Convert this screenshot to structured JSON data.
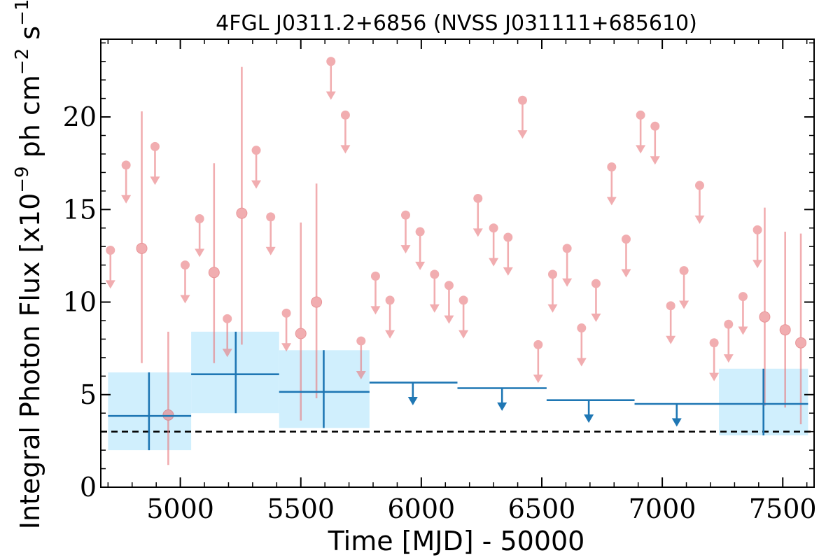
{
  "chart_data": {
    "type": "scatter",
    "title": "4FGL J0311.2+6856 (NVSS J031111+685610)",
    "xlabel": "Time [MJD] - 50000",
    "ylabel_prefix": "Integral Photon Flux [x10",
    "ylabel_exp1": "−9",
    "ylabel_mid": " ph cm",
    "ylabel_exp2": "−2",
    "ylabel_mid2": " s",
    "ylabel_exp3": "−1",
    "ylabel_suffix": "]",
    "xlim": [
      4670,
      7630
    ],
    "ylim": [
      0,
      24.2
    ],
    "x_ticks": [
      5000,
      5500,
      6000,
      6500,
      7000,
      7500
    ],
    "x_tick_labels": [
      "5000",
      "5500",
      "6000",
      "6500",
      "7000",
      "7500"
    ],
    "y_ticks": [
      0,
      5,
      10,
      15,
      20
    ],
    "y_tick_labels": [
      "0",
      "5",
      "10",
      "15",
      "20"
    ],
    "reference_line": 3.0,
    "colors": {
      "short": "#e8787c",
      "long": "#1f77b4",
      "band": "#cdeefd",
      "ref": "#000000"
    },
    "short_bin_points": [
      {
        "x": 4950,
        "y": 3.9,
        "err": [
          1.2,
          8.4
        ]
      },
      {
        "x": 5140,
        "y": 11.6,
        "err": [
          6.7,
          17.5
        ]
      },
      {
        "x": 4840,
        "y": 12.9,
        "err": [
          6.7,
          20.3
        ]
      },
      {
        "x": 5255,
        "y": 14.8,
        "err": [
          7.7,
          22.7
        ]
      },
      {
        "x": 5500,
        "y": 8.3,
        "err": [
          3.6,
          14.3
        ]
      },
      {
        "x": 5565,
        "y": 10.0,
        "err": [
          4.8,
          16.4
        ]
      },
      {
        "x": 7425,
        "y": 9.2,
        "err": [
          4.4,
          15.1
        ]
      },
      {
        "x": 7510,
        "y": 8.5,
        "err": [
          4.3,
          13.8
        ]
      },
      {
        "x": 7575,
        "y": 7.8,
        "err": [
          3.4,
          13.7
        ]
      }
    ],
    "short_bin_upper_limits": [
      {
        "x": 4710,
        "y": 12.8
      },
      {
        "x": 4775,
        "y": 17.4
      },
      {
        "x": 4895,
        "y": 18.4
      },
      {
        "x": 5020,
        "y": 12.0
      },
      {
        "x": 5080,
        "y": 14.5
      },
      {
        "x": 5195,
        "y": 9.1
      },
      {
        "x": 5315,
        "y": 18.2
      },
      {
        "x": 5375,
        "y": 14.6
      },
      {
        "x": 5440,
        "y": 9.4
      },
      {
        "x": 5625,
        "y": 23.0
      },
      {
        "x": 5685,
        "y": 20.1
      },
      {
        "x": 5750,
        "y": 7.9
      },
      {
        "x": 5810,
        "y": 11.4
      },
      {
        "x": 5870,
        "y": 10.1
      },
      {
        "x": 5935,
        "y": 14.7
      },
      {
        "x": 5995,
        "y": 13.8
      },
      {
        "x": 6055,
        "y": 11.5
      },
      {
        "x": 6115,
        "y": 10.9
      },
      {
        "x": 6175,
        "y": 10.1
      },
      {
        "x": 6235,
        "y": 15.6
      },
      {
        "x": 6300,
        "y": 14.0
      },
      {
        "x": 6360,
        "y": 13.5
      },
      {
        "x": 6420,
        "y": 20.9
      },
      {
        "x": 6485,
        "y": 7.7
      },
      {
        "x": 6545,
        "y": 11.5
      },
      {
        "x": 6605,
        "y": 12.9
      },
      {
        "x": 6665,
        "y": 8.6
      },
      {
        "x": 6725,
        "y": 11.0
      },
      {
        "x": 6790,
        "y": 17.3
      },
      {
        "x": 6850,
        "y": 13.4
      },
      {
        "x": 6910,
        "y": 20.1
      },
      {
        "x": 6970,
        "y": 19.5
      },
      {
        "x": 7035,
        "y": 9.8
      },
      {
        "x": 7090,
        "y": 11.7
      },
      {
        "x": 7155,
        "y": 16.3
      },
      {
        "x": 7215,
        "y": 7.8
      },
      {
        "x": 7275,
        "y": 8.8
      },
      {
        "x": 7335,
        "y": 10.3
      },
      {
        "x": 7395,
        "y": 13.9
      }
    ],
    "long_bin_points": [
      {
        "x": 4870,
        "x0": 4700,
        "x1": 5045,
        "y": 3.85,
        "y_lo": 2.0,
        "y_hi": 6.2
      },
      {
        "x": 5230,
        "x0": 5045,
        "x1": 5410,
        "y": 6.1,
        "y_lo": 4.0,
        "y_hi": 8.4
      },
      {
        "x": 5595,
        "x0": 5410,
        "x1": 5785,
        "y": 5.15,
        "y_lo": 3.2,
        "y_hi": 7.4
      },
      {
        "x": 7420,
        "x0": 7235,
        "x1": 7605,
        "y": 4.5,
        "y_lo": 2.8,
        "y_hi": 6.4
      }
    ],
    "long_bin_upper_limits": [
      {
        "x": 5965,
        "x0": 5785,
        "x1": 6150,
        "y": 5.65
      },
      {
        "x": 6335,
        "x0": 6150,
        "x1": 6520,
        "y": 5.35
      },
      {
        "x": 6695,
        "x0": 6520,
        "x1": 6885,
        "y": 4.7
      },
      {
        "x": 7060,
        "x0": 6885,
        "x1": 7235,
        "y": 4.5
      }
    ]
  }
}
